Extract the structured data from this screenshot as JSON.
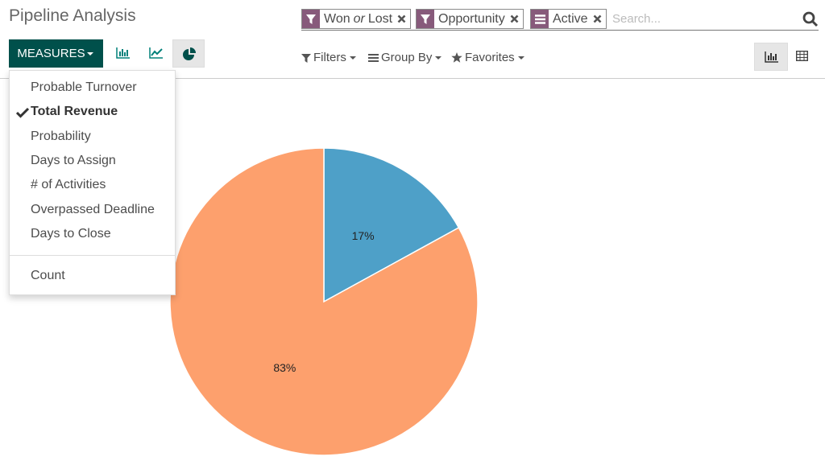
{
  "header": {
    "title": "Pipeline Analysis"
  },
  "search": {
    "facets": [
      {
        "values": [
          "Won",
          "Lost"
        ],
        "separator": "or"
      },
      {
        "values": [
          "Opportunity"
        ]
      },
      {
        "values": [
          "Active"
        ]
      }
    ],
    "placeholder": "Search..."
  },
  "toolbar": {
    "measures_button": "MEASURES",
    "filters": "Filters",
    "group_by": "Group By",
    "favorites": "Favorites"
  },
  "measures_menu": {
    "items": [
      {
        "label": "Probable Turnover",
        "checked": false
      },
      {
        "label": "Total Revenue",
        "checked": true
      },
      {
        "label": "Probability",
        "checked": false
      },
      {
        "label": "Days to Assign",
        "checked": false
      },
      {
        "label": "# of Activities",
        "checked": false
      },
      {
        "label": "Overpassed Deadline",
        "checked": false
      },
      {
        "label": "Days to Close",
        "checked": false
      }
    ],
    "count": "Count"
  },
  "chart_data": {
    "type": "pie",
    "values": [
      17,
      83
    ],
    "value_labels": [
      "17%",
      "83%"
    ],
    "colors": [
      "#4ea0c8",
      "#fda06d"
    ]
  }
}
